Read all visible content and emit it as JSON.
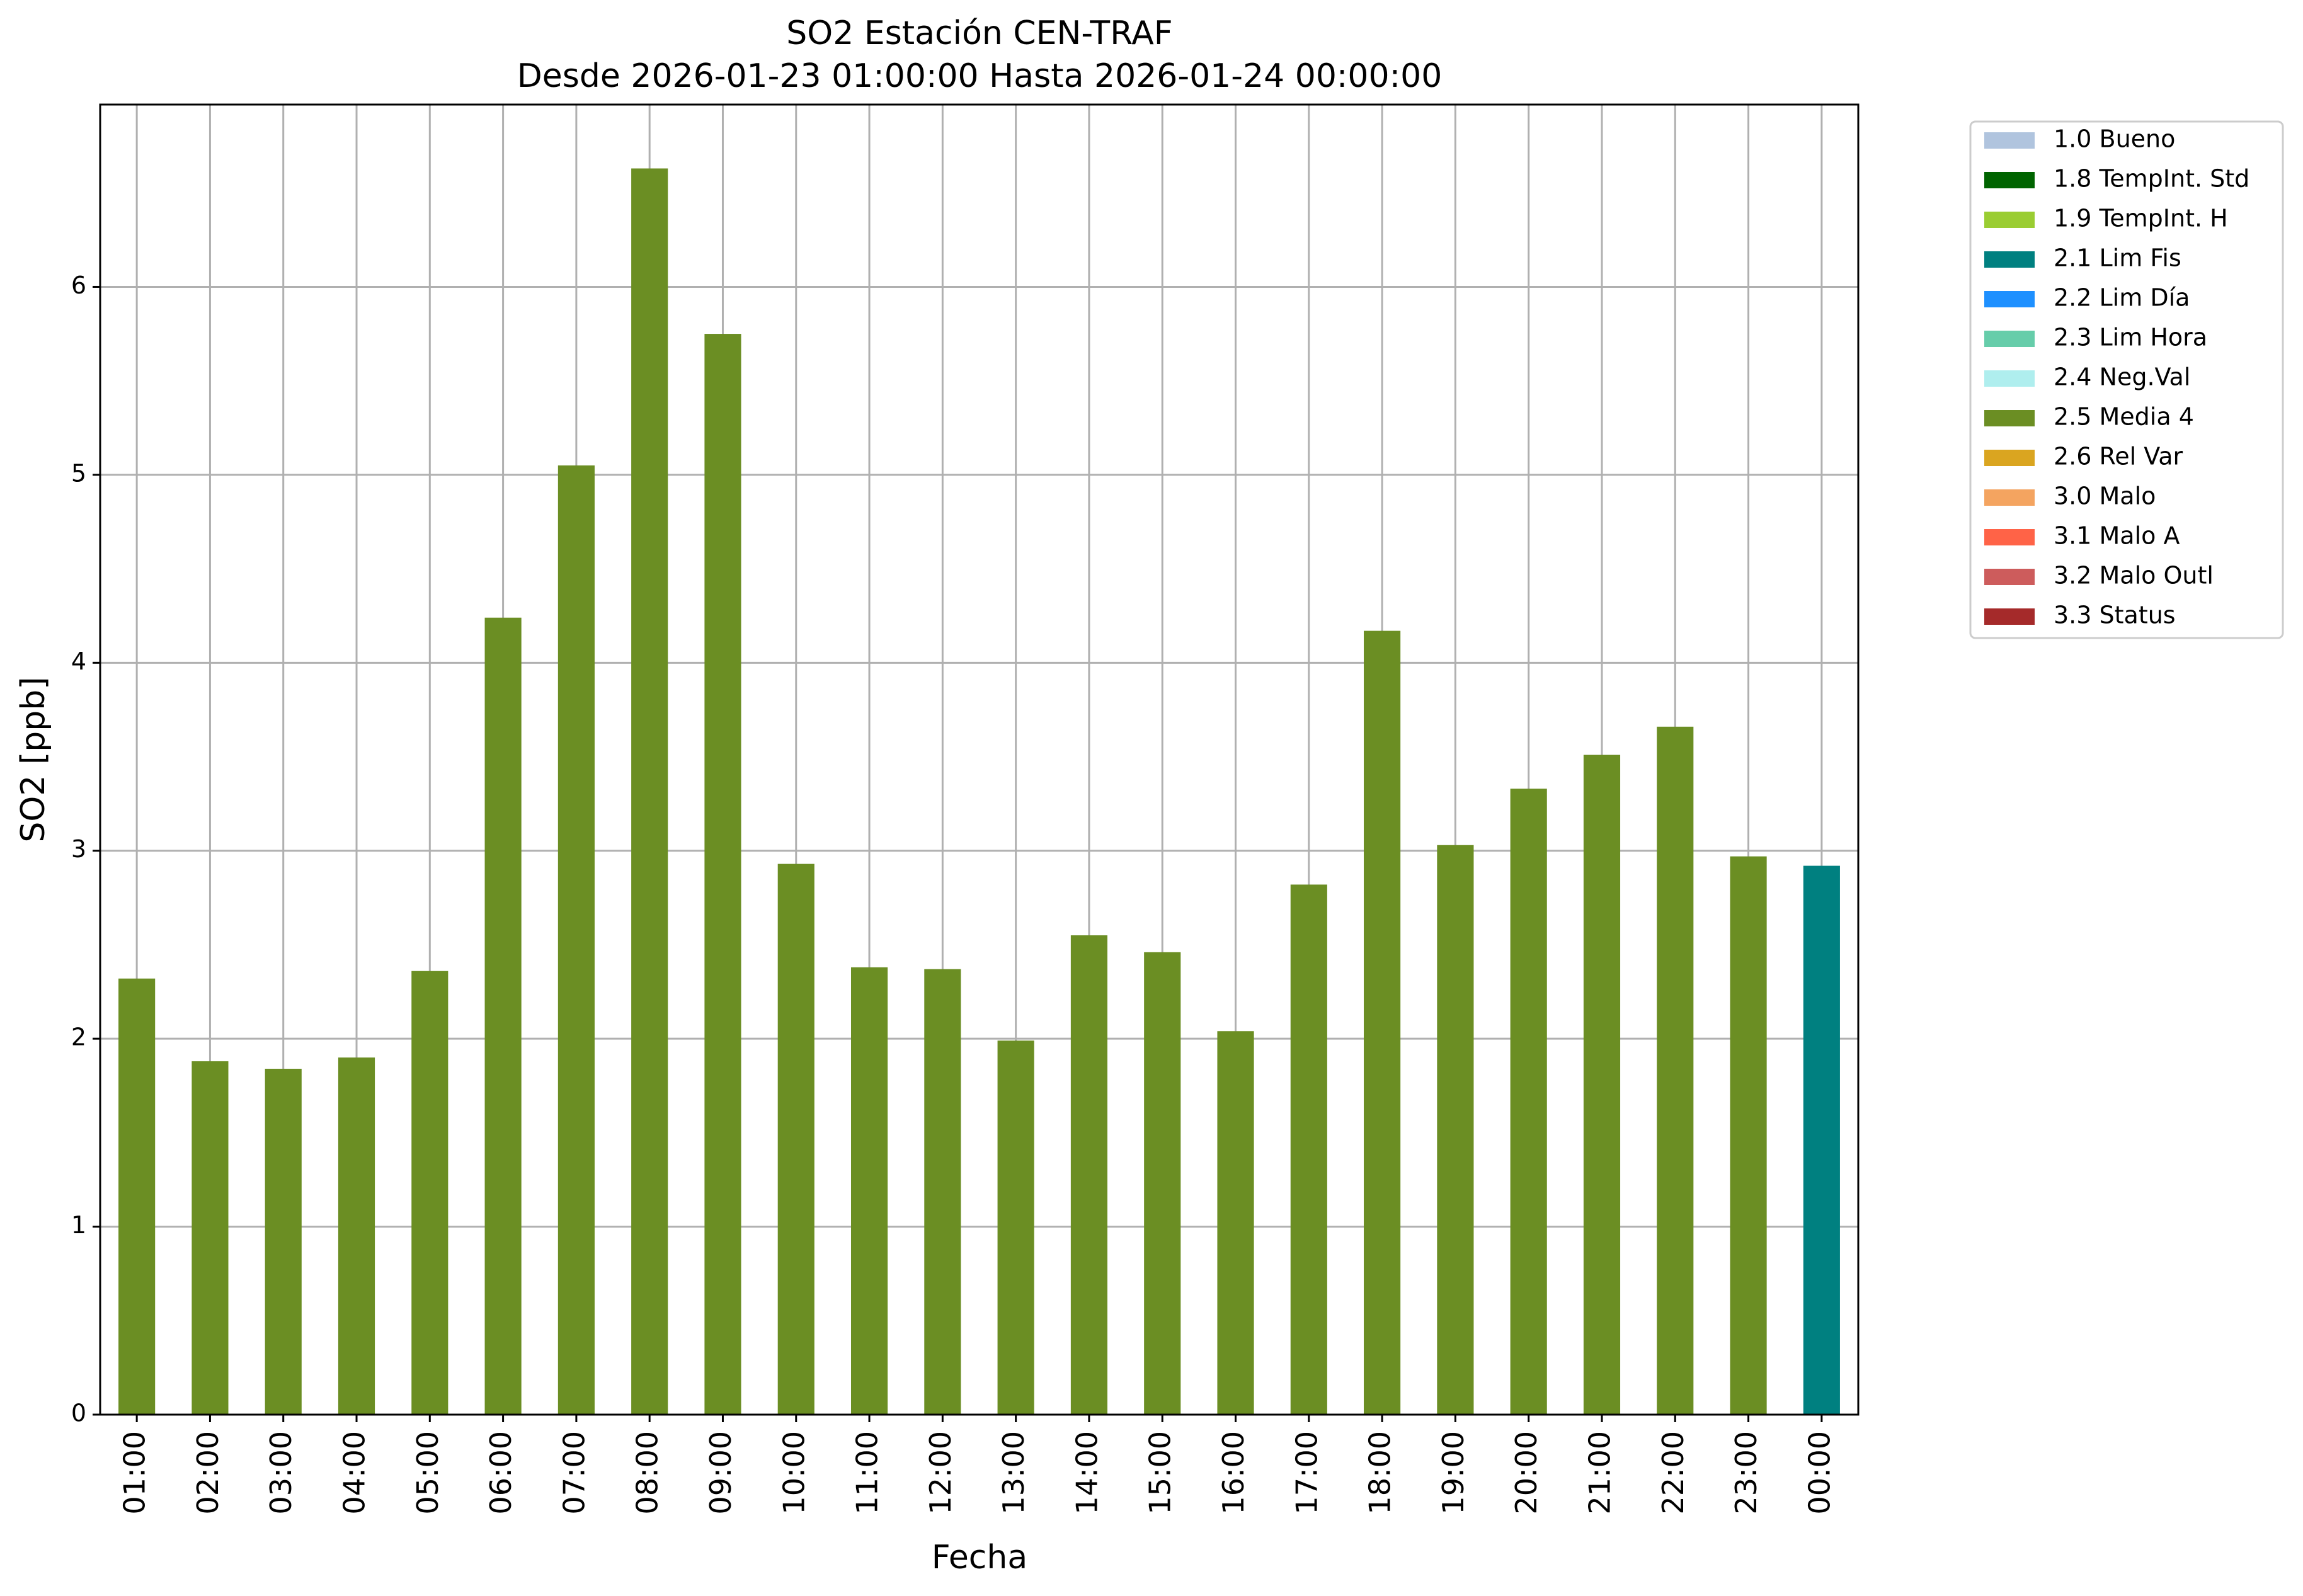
{
  "chart_data": {
    "type": "bar",
    "title": "SO2 Estación CEN-TRAF",
    "subtitle": "Desde 2026-01-23 01:00:00 Hasta 2026-01-24 00:00:00",
    "xlabel": "Fecha",
    "ylabel": "SO2 [ppb]",
    "ylim": [
      0,
      6.97
    ],
    "yticks": [
      "0",
      "1",
      "2",
      "3",
      "4",
      "5",
      "6"
    ],
    "grid": true,
    "legend_position": "outside-top-right",
    "categories": [
      "01:00",
      "02:00",
      "03:00",
      "04:00",
      "05:00",
      "06:00",
      "07:00",
      "08:00",
      "09:00",
      "10:00",
      "11:00",
      "12:00",
      "13:00",
      "14:00",
      "15:00",
      "16:00",
      "17:00",
      "18:00",
      "19:00",
      "20:00",
      "21:00",
      "22:00",
      "23:00",
      "00:00"
    ],
    "values": [
      2.32,
      1.88,
      1.84,
      1.9,
      2.36,
      4.24,
      5.05,
      6.63,
      5.75,
      2.93,
      2.38,
      2.37,
      1.99,
      2.55,
      2.46,
      2.04,
      2.82,
      4.17,
      3.03,
      3.33,
      3.51,
      3.66,
      2.97,
      2.92
    ],
    "bar_flags": [
      "2.5 Media 4",
      "2.5 Media 4",
      "2.5 Media 4",
      "2.5 Media 4",
      "2.5 Media 4",
      "2.5 Media 4",
      "2.5 Media 4",
      "2.5 Media 4",
      "2.5 Media 4",
      "2.5 Media 4",
      "2.5 Media 4",
      "2.5 Media 4",
      "2.5 Media 4",
      "2.5 Media 4",
      "2.5 Media 4",
      "2.5 Media 4",
      "2.5 Media 4",
      "2.5 Media 4",
      "2.5 Media 4",
      "2.5 Media 4",
      "2.5 Media 4",
      "2.5 Media 4",
      "2.5 Media 4",
      "2.1 Lim Fis"
    ],
    "legend": [
      {
        "label": "1.0 Bueno",
        "color": "#b0c4de"
      },
      {
        "label": "1.8 TempInt. Std",
        "color": "#006400"
      },
      {
        "label": "1.9 TempInt. H",
        "color": "#9acd32"
      },
      {
        "label": "2.1 Lim Fis",
        "color": "#008080"
      },
      {
        "label": "2.2 Lim Día",
        "color": "#1e90ff"
      },
      {
        "label": "2.3 Lim Hora",
        "color": "#66cdaa"
      },
      {
        "label": "2.4 Neg.Val",
        "color": "#afeeee"
      },
      {
        "label": "2.5 Media 4",
        "color": "#6b8e23"
      },
      {
        "label": "2.6 Rel Var",
        "color": "#daa520"
      },
      {
        "label": "3.0 Malo",
        "color": "#f4a460"
      },
      {
        "label": "3.1 Malo A",
        "color": "#ff6347"
      },
      {
        "label": "3.2 Malo Outl",
        "color": "#cd5c5c"
      },
      {
        "label": "3.3 Status",
        "color": "#a52a2a"
      }
    ]
  }
}
